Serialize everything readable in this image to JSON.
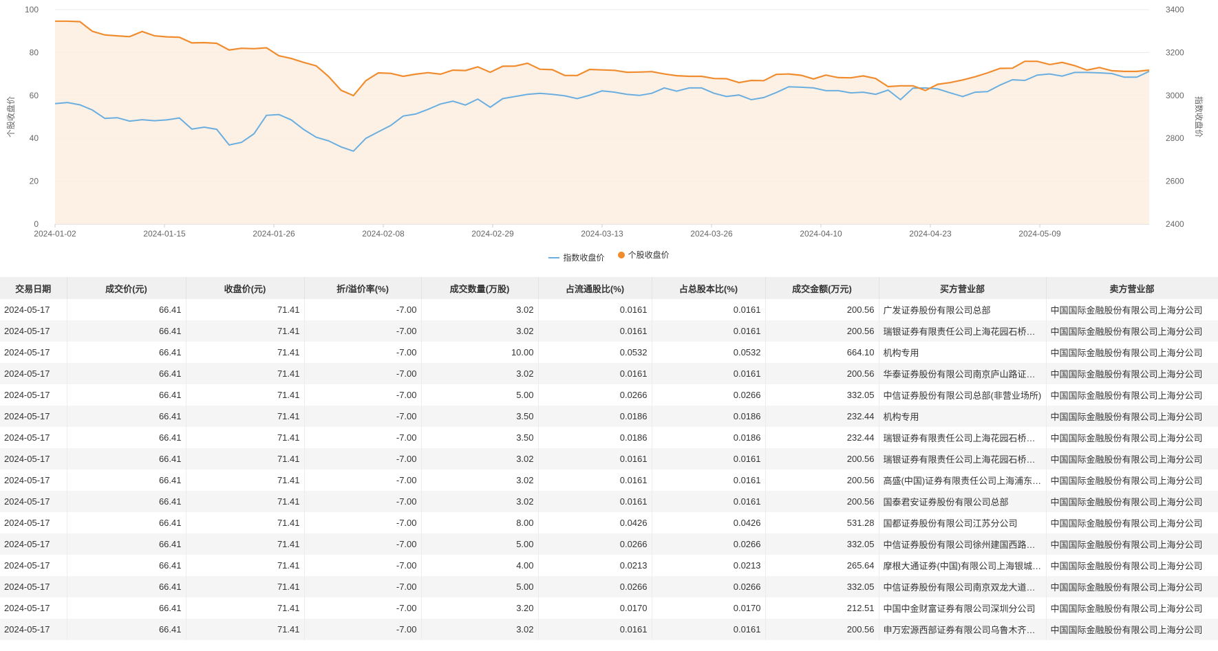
{
  "chart_data": {
    "type": "line",
    "x_ticks": [
      "2024-01-02",
      "2024-01-15",
      "2024-01-26",
      "2024-02-08",
      "2024-02-29",
      "2024-03-13",
      "2024-03-26",
      "2024-04-10",
      "2024-04-23",
      "2024-05-09"
    ],
    "left_axis": {
      "label": "个股收盘价",
      "ticks": [
        0,
        20,
        40,
        60,
        80,
        100
      ],
      "ylim": [
        0,
        100
      ]
    },
    "right_axis": {
      "label": "指数收盘价",
      "ticks": [
        2400,
        2600,
        2800,
        3000,
        3200,
        3400
      ],
      "ylim": [
        2400,
        3400
      ]
    },
    "grid": true,
    "legend_position": "bottom-center",
    "series": [
      {
        "name": "指数收盘价",
        "axis": "right",
        "color": "#6aaee0",
        "values": [
          2962,
          2967,
          2956,
          2932,
          2893,
          2896,
          2880,
          2887,
          2882,
          2886,
          2895,
          2843,
          2852,
          2842,
          2769,
          2781,
          2821,
          2907,
          2911,
          2886,
          2841,
          2805,
          2788,
          2760,
          2740,
          2800,
          2830,
          2860,
          2904,
          2913,
          2935,
          2960,
          2973,
          2955,
          2983,
          2945,
          2985,
          2995,
          3005,
          3010,
          3005,
          2998,
          2985,
          3001,
          3021,
          3015,
          3005,
          3000,
          3010,
          3035,
          3020,
          3035,
          3035,
          3010,
          2995,
          3002,
          2980,
          2990,
          3013,
          3040,
          3038,
          3035,
          3022,
          3022,
          3012,
          3015,
          3005,
          3025,
          2980,
          3034,
          3035,
          3030,
          3012,
          2995,
          3015,
          3018,
          3048,
          3073,
          3070,
          3095,
          3100,
          3090,
          3107,
          3107,
          3105,
          3102,
          3085,
          3085,
          3112
        ]
      },
      {
        "name": "个股收盘价",
        "axis": "left",
        "color": "#f08c2e",
        "values": [
          94.6,
          94.6,
          94.4,
          89.9,
          88.2,
          87.8,
          87.4,
          89.8,
          87.8,
          87.3,
          87.1,
          84.5,
          84.6,
          84.3,
          81.2,
          82.0,
          81.8,
          82.2,
          78.5,
          77.2,
          75.4,
          73.8,
          68.8,
          62.4,
          59.9,
          66.9,
          70.5,
          70.3,
          68.9,
          69.9,
          70.6,
          69.9,
          71.8,
          71.6,
          73.3,
          70.8,
          73.6,
          73.7,
          75.0,
          72.2,
          72.0,
          69.3,
          69.3,
          72.1,
          71.9,
          71.7,
          70.8,
          70.9,
          71.1,
          70.0,
          69.2,
          68.9,
          68.9,
          67.9,
          67.8,
          66.0,
          67.0,
          66.9,
          69.8,
          70.0,
          69.4,
          67.7,
          69.5,
          68.3,
          68.2,
          69.1,
          67.9,
          64.1,
          64.5,
          64.5,
          62.3,
          65.2,
          66.0,
          67.2,
          68.7,
          70.5,
          72.6,
          72.7,
          75.9,
          75.9,
          74.4,
          75.4,
          73.9,
          71.8,
          73.0,
          71.5,
          71.2,
          71.2,
          71.8
        ]
      }
    ]
  },
  "table": {
    "columns": [
      "交易日期",
      "成交价(元)",
      "收盘价(元)",
      "折/溢价率(%)",
      "成交数量(万股)",
      "占流通股比(%)",
      "占总股本比(%)",
      "成交金额(万元)",
      "买方营业部",
      "卖方营业部"
    ],
    "rows": [
      [
        "2024-05-17",
        "66.41",
        "71.41",
        "-7.00",
        "3.02",
        "0.0161",
        "0.0161",
        "200.56",
        "广发证券股份有限公司总部",
        "中国国际金融股份有限公司上海分公司"
      ],
      [
        "2024-05-17",
        "66.41",
        "71.41",
        "-7.00",
        "3.02",
        "0.0161",
        "0.0161",
        "200.56",
        "瑞银证券有限责任公司上海花园石桥路证券营业部",
        "中国国际金融股份有限公司上海分公司"
      ],
      [
        "2024-05-17",
        "66.41",
        "71.41",
        "-7.00",
        "10.00",
        "0.0532",
        "0.0532",
        "664.10",
        "机构专用",
        "中国国际金融股份有限公司上海分公司"
      ],
      [
        "2024-05-17",
        "66.41",
        "71.41",
        "-7.00",
        "3.02",
        "0.0161",
        "0.0161",
        "200.56",
        "华泰证券股份有限公司南京庐山路证券营业部",
        "中国国际金融股份有限公司上海分公司"
      ],
      [
        "2024-05-17",
        "66.41",
        "71.41",
        "-7.00",
        "5.00",
        "0.0266",
        "0.0266",
        "332.05",
        "中信证券股份有限公司总部(非营业场所)",
        "中国国际金融股份有限公司上海分公司"
      ],
      [
        "2024-05-17",
        "66.41",
        "71.41",
        "-7.00",
        "3.50",
        "0.0186",
        "0.0186",
        "232.44",
        "机构专用",
        "中国国际金融股份有限公司上海分公司"
      ],
      [
        "2024-05-17",
        "66.41",
        "71.41",
        "-7.00",
        "3.50",
        "0.0186",
        "0.0186",
        "232.44",
        "瑞银证券有限责任公司上海花园石桥路证券营业部",
        "中国国际金融股份有限公司上海分公司"
      ],
      [
        "2024-05-17",
        "66.41",
        "71.41",
        "-7.00",
        "3.02",
        "0.0161",
        "0.0161",
        "200.56",
        "瑞银证券有限责任公司上海花园石桥路证券营业部",
        "中国国际金融股份有限公司上海分公司"
      ],
      [
        "2024-05-17",
        "66.41",
        "71.41",
        "-7.00",
        "3.02",
        "0.0161",
        "0.0161",
        "200.56",
        "高盛(中国)证券有限责任公司上海浦东新区世纪大道证券营业部",
        "中国国际金融股份有限公司上海分公司"
      ],
      [
        "2024-05-17",
        "66.41",
        "71.41",
        "-7.00",
        "3.02",
        "0.0161",
        "0.0161",
        "200.56",
        "国泰君安证券股份有限公司总部",
        "中国国际金融股份有限公司上海分公司"
      ],
      [
        "2024-05-17",
        "66.41",
        "71.41",
        "-7.00",
        "8.00",
        "0.0426",
        "0.0426",
        "531.28",
        "国都证券股份有限公司江苏分公司",
        "中国国际金融股份有限公司上海分公司"
      ],
      [
        "2024-05-17",
        "66.41",
        "71.41",
        "-7.00",
        "5.00",
        "0.0266",
        "0.0266",
        "332.05",
        "中信证券股份有限公司徐州建国西路证券营业部",
        "中国国际金融股份有限公司上海分公司"
      ],
      [
        "2024-05-17",
        "66.41",
        "71.41",
        "-7.00",
        "4.00",
        "0.0213",
        "0.0213",
        "265.64",
        "摩根大通证券(中国)有限公司上海银城中路证券营业部",
        "中国国际金融股份有限公司上海分公司"
      ],
      [
        "2024-05-17",
        "66.41",
        "71.41",
        "-7.00",
        "5.00",
        "0.0266",
        "0.0266",
        "332.05",
        "中信证券股份有限公司南京双龙大道证券营业部",
        "中国国际金融股份有限公司上海分公司"
      ],
      [
        "2024-05-17",
        "66.41",
        "71.41",
        "-7.00",
        "3.20",
        "0.0170",
        "0.0170",
        "212.51",
        "中国中金财富证券有限公司深圳分公司",
        "中国国际金融股份有限公司上海分公司"
      ],
      [
        "2024-05-17",
        "66.41",
        "71.41",
        "-7.00",
        "3.02",
        "0.0161",
        "0.0161",
        "200.56",
        "申万宏源西部证券有限公司乌鲁木齐分公司",
        "中国国际金融股份有限公司上海分公司"
      ]
    ]
  }
}
